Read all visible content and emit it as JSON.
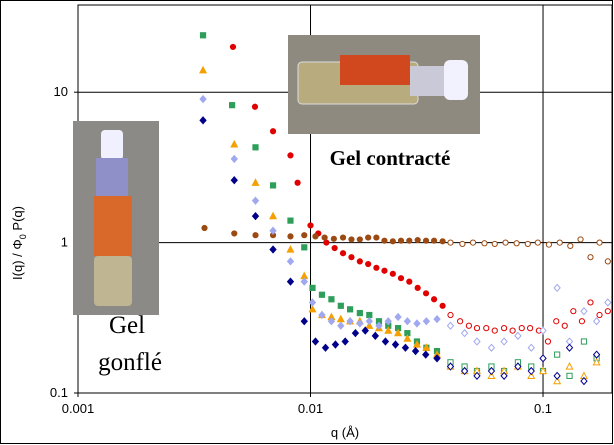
{
  "chart_data": {
    "type": "scatter",
    "log_x": true,
    "log_y": true,
    "grid": true,
    "xlabel": "q (Å)",
    "ylabel": [
      "I(q) / Φ",
      "0",
      " P(q)"
    ],
    "annotations": {
      "contracte": "Gel contracté",
      "gonfle": [
        "Gel",
        "gonflé"
      ]
    },
    "xlim": [
      0.001,
      0.198
    ],
    "ylim": [
      0.1,
      38
    ],
    "xticks": [
      0.001,
      0.01,
      0.1
    ],
    "yticks": [
      0.1,
      1,
      10
    ],
    "series": [
      {
        "color": "#e00000",
        "marker": "circle",
        "filled": true,
        "x": [
          0.00464,
          0.00577,
          0.0069,
          0.0082,
          0.0088,
          0.01,
          0.0108,
          0.0117,
          0.0127,
          0.0138,
          0.015,
          0.0163,
          0.0177,
          0.0192,
          0.0208,
          0.0226,
          0.0245,
          0.0266,
          0.0289,
          0.0314,
          0.034,
          0.037
        ],
        "values": [
          20,
          8,
          5.5,
          3.8,
          2.5,
          1.3,
          1.15,
          1.0,
          0.92,
          0.85,
          0.8,
          0.75,
          0.72,
          0.68,
          0.65,
          0.62,
          0.58,
          0.55,
          0.5,
          0.46,
          0.42,
          0.38
        ]
      },
      {
        "color": "#e00000",
        "marker": "circle",
        "filled": false,
        "x": [
          0.04,
          0.044,
          0.048,
          0.052,
          0.057,
          0.062,
          0.068,
          0.074,
          0.081,
          0.088,
          0.096,
          0.105,
          0.114,
          0.124,
          0.135,
          0.147,
          0.16,
          0.175,
          0.19
        ],
        "values": [
          0.33,
          0.3,
          0.28,
          0.27,
          0.27,
          0.26,
          0.27,
          0.26,
          0.27,
          0.27,
          0.26,
          0.22,
          0.3,
          0.28,
          0.35,
          0.3,
          0.4,
          0.33,
          0.35
        ]
      },
      {
        "color": "#9a4a12",
        "marker": "circle",
        "filled": true,
        "x": [
          0.0035,
          0.0047,
          0.0058,
          0.0069,
          0.0082,
          0.0094,
          0.0105,
          0.0115,
          0.0126,
          0.0138,
          0.015,
          0.0163,
          0.0177,
          0.0192,
          0.0208,
          0.0226,
          0.0245,
          0.0266,
          0.0289,
          0.0314,
          0.034,
          0.037
        ],
        "values": [
          1.25,
          1.15,
          1.12,
          1.12,
          1.1,
          1.12,
          1.1,
          1.08,
          1.06,
          1.08,
          1.05,
          1.05,
          1.08,
          1.08,
          1.03,
          1.02,
          1.03,
          1.03,
          1.04,
          1.03,
          1.03,
          1.02
        ]
      },
      {
        "color": "#9a4a12",
        "marker": "circle",
        "filled": false,
        "x": [
          0.04,
          0.045,
          0.05,
          0.056,
          0.062,
          0.069,
          0.077,
          0.086,
          0.095,
          0.106,
          0.118,
          0.131,
          0.145,
          0.16,
          0.175,
          0.19
        ],
        "values": [
          1.0,
          0.98,
          1.0,
          0.99,
          0.98,
          1.0,
          0.99,
          0.98,
          1.0,
          0.97,
          1.0,
          0.95,
          1.05,
          0.8,
          1.0,
          0.75
        ]
      },
      {
        "color": "#2e9e5b",
        "marker": "square",
        "filled": true,
        "x": [
          0.00345,
          0.0046,
          0.0058,
          0.0069,
          0.0082,
          0.0094,
          0.0102,
          0.0112,
          0.0123,
          0.0135,
          0.0148,
          0.0163,
          0.0179,
          0.0197,
          0.0216,
          0.0238,
          0.0261,
          0.0287,
          0.0315,
          0.035
        ],
        "values": [
          23.9,
          8.2,
          4.3,
          2.4,
          1.4,
          0.93,
          0.5,
          0.45,
          0.42,
          0.38,
          0.36,
          0.34,
          0.33,
          0.3,
          0.28,
          0.27,
          0.25,
          0.22,
          0.2,
          0.19
        ]
      },
      {
        "color": "#2e9e5b",
        "marker": "square",
        "filled": false,
        "x": [
          0.04,
          0.046,
          0.052,
          0.06,
          0.068,
          0.078,
          0.089,
          0.1,
          0.115,
          0.13,
          0.15,
          0.17
        ],
        "values": [
          0.16,
          0.15,
          0.14,
          0.15,
          0.14,
          0.16,
          0.15,
          0.14,
          0.18,
          0.13,
          0.22,
          0.17
        ]
      },
      {
        "color": "#f5a000",
        "marker": "triangle",
        "filled": true,
        "x": [
          0.00345,
          0.0047,
          0.0058,
          0.0069,
          0.0082,
          0.0094,
          0.0102,
          0.0112,
          0.0123,
          0.0135,
          0.0148,
          0.0163,
          0.0179,
          0.0197,
          0.0216,
          0.0238,
          0.0261,
          0.0287,
          0.0315,
          0.035
        ],
        "values": [
          14,
          4.5,
          2.5,
          1.5,
          0.9,
          0.6,
          0.36,
          0.33,
          0.32,
          0.31,
          0.3,
          0.3,
          0.28,
          0.27,
          0.26,
          0.25,
          0.23,
          0.21,
          0.2,
          0.18
        ]
      },
      {
        "color": "#f5a000",
        "marker": "triangle",
        "filled": false,
        "x": [
          0.04,
          0.046,
          0.052,
          0.06,
          0.068,
          0.078,
          0.089,
          0.1,
          0.115,
          0.13,
          0.15,
          0.17
        ],
        "values": [
          0.15,
          0.14,
          0.14,
          0.13,
          0.14,
          0.15,
          0.13,
          0.14,
          0.12,
          0.15,
          0.13,
          0.16
        ]
      },
      {
        "color": "#a0a8f0",
        "marker": "diamond",
        "filled": true,
        "x": [
          0.00345,
          0.0047,
          0.0058,
          0.0069,
          0.0082,
          0.0094,
          0.0102,
          0.0112,
          0.0123,
          0.0135,
          0.0148,
          0.0163,
          0.0179,
          0.0197,
          0.0216,
          0.0238,
          0.0261,
          0.0287,
          0.0315,
          0.035
        ],
        "values": [
          9,
          3.6,
          1.9,
          1.2,
          0.75,
          0.55,
          0.4,
          0.33,
          0.3,
          0.28,
          0.3,
          0.29,
          0.3,
          0.28,
          0.3,
          0.32,
          0.3,
          0.29,
          0.3,
          0.31
        ]
      },
      {
        "color": "#a0a8f0",
        "marker": "diamond",
        "filled": false,
        "x": [
          0.04,
          0.046,
          0.052,
          0.06,
          0.068,
          0.078,
          0.089,
          0.1,
          0.115,
          0.13,
          0.15,
          0.17,
          0.19
        ],
        "values": [
          0.28,
          0.25,
          0.22,
          0.2,
          0.22,
          0.24,
          0.2,
          0.26,
          0.5,
          0.22,
          0.35,
          0.3,
          0.4
        ]
      },
      {
        "color": "#00008b",
        "marker": "diamond",
        "filled": true,
        "x": [
          0.00345,
          0.0047,
          0.0058,
          0.0069,
          0.0082,
          0.0094,
          0.0105,
          0.0116,
          0.0128,
          0.0141,
          0.0156,
          0.0172,
          0.019,
          0.021,
          0.0232,
          0.0256,
          0.0283,
          0.0313,
          0.035
        ],
        "values": [
          6.5,
          2.6,
          1.5,
          0.9,
          0.55,
          0.3,
          0.22,
          0.2,
          0.21,
          0.22,
          0.25,
          0.26,
          0.24,
          0.22,
          0.21,
          0.2,
          0.19,
          0.18,
          0.17
        ]
      },
      {
        "color": "#00008b",
        "marker": "diamond",
        "filled": false,
        "x": [
          0.04,
          0.046,
          0.052,
          0.06,
          0.068,
          0.078,
          0.089,
          0.1,
          0.115,
          0.13,
          0.15,
          0.17
        ],
        "values": [
          0.15,
          0.14,
          0.13,
          0.14,
          0.13,
          0.15,
          0.14,
          0.17,
          0.13,
          0.2,
          0.12,
          0.18
        ]
      }
    ]
  }
}
